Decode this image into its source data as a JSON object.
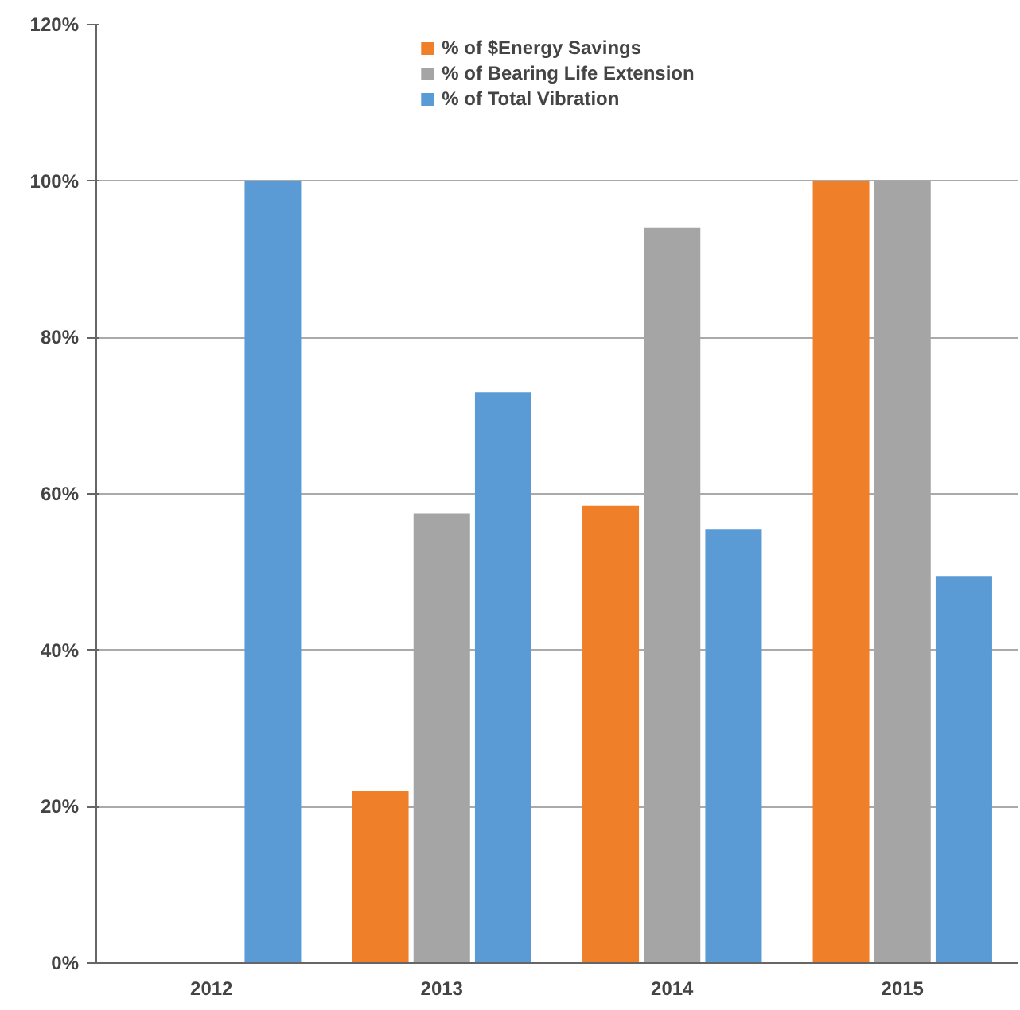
{
  "chart_data": {
    "type": "bar",
    "categories": [
      "2012",
      "2013",
      "2014",
      "2015"
    ],
    "series": [
      {
        "name": "% of $Energy Savings",
        "color": "#f07f2a",
        "values": [
          null,
          22,
          58.5,
          100
        ]
      },
      {
        "name": "% of Bearing Life Extension",
        "color": "#a5a5a5",
        "values": [
          null,
          57.5,
          94,
          100
        ]
      },
      {
        "name": "% of Total Vibration",
        "color": "#5a9bd5",
        "values": [
          100,
          73,
          55.5,
          49.5
        ]
      }
    ],
    "ylim": [
      0,
      120
    ],
    "yticks": [
      {
        "value": 0,
        "label": "0%"
      },
      {
        "value": 20,
        "label": "20%"
      },
      {
        "value": 40,
        "label": "40%"
      },
      {
        "value": 60,
        "label": "60%"
      },
      {
        "value": 80,
        "label": "80%"
      },
      {
        "value": 100,
        "label": "100%"
      },
      {
        "value": 120,
        "label": "120%"
      }
    ],
    "grid": "y",
    "legend": "top"
  }
}
